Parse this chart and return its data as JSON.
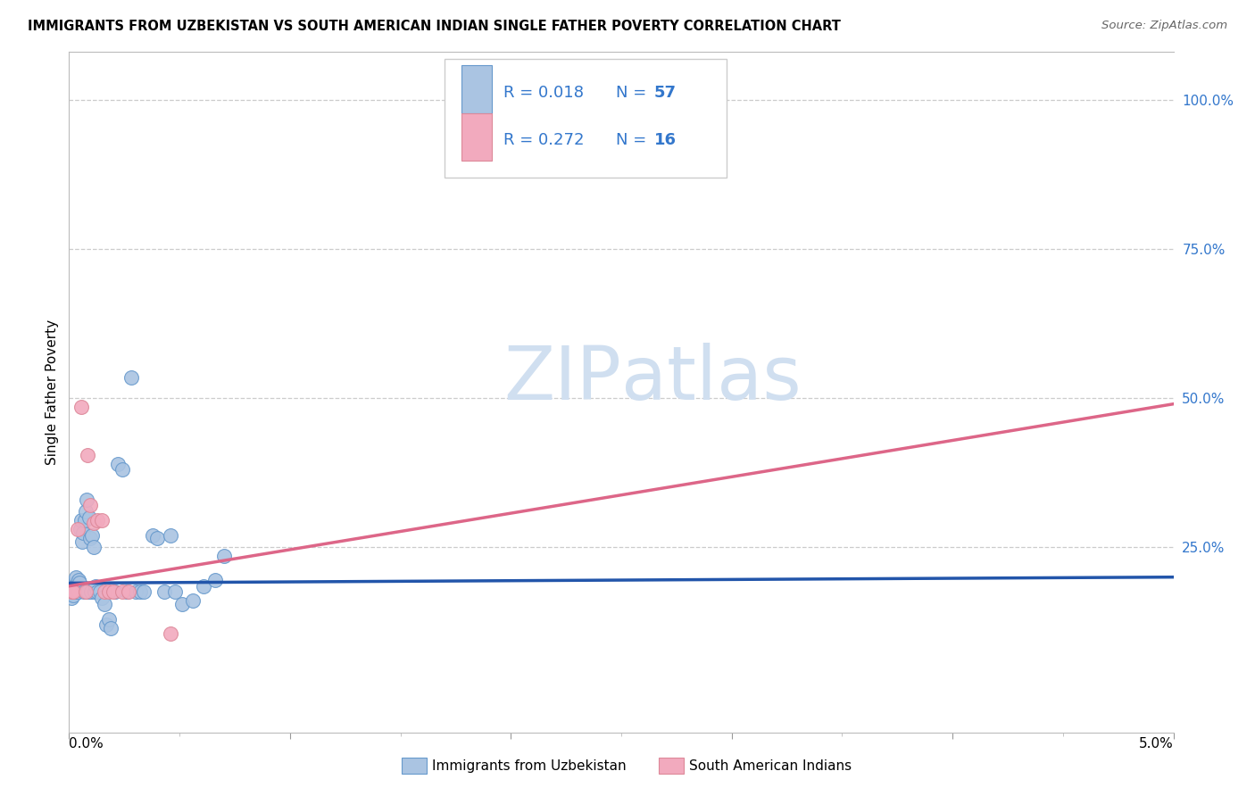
{
  "title": "IMMIGRANTS FROM UZBEKISTAN VS SOUTH AMERICAN INDIAN SINGLE FATHER POVERTY CORRELATION CHART",
  "source": "Source: ZipAtlas.com",
  "ylabel": "Single Father Poverty",
  "right_yticks": [
    "100.0%",
    "75.0%",
    "50.0%",
    "25.0%"
  ],
  "right_ytick_vals": [
    1.0,
    0.75,
    0.5,
    0.25
  ],
  "xmin": 0.0,
  "xmax": 0.05,
  "ymin": -0.06,
  "ymax": 1.08,
  "blue_color": "#aac4e2",
  "pink_color": "#f2aabe",
  "blue_edge_color": "#6699cc",
  "pink_edge_color": "#dd8899",
  "blue_line_color": "#2255aa",
  "pink_line_color": "#dd6688",
  "watermark_color": "#d0dff0",
  "blue_n": 57,
  "pink_n": 16,
  "blue_r": 0.018,
  "pink_r": 0.272,
  "blue_line_y0": 0.19,
  "blue_line_y1": 0.2,
  "pink_line_y0": 0.185,
  "pink_line_y1": 0.49,
  "blue_x": [
    8e-05,
    0.0001,
    0.00012,
    0.00015,
    0.00018,
    0.0002,
    0.00025,
    0.00028,
    0.0003,
    0.00032,
    0.00035,
    0.00038,
    0.0004,
    0.00042,
    0.00045,
    0.00048,
    0.0005,
    0.00055,
    0.0006,
    0.00065,
    0.00068,
    0.0007,
    0.00075,
    0.0008,
    0.00085,
    0.0009,
    0.00095,
    0.001,
    0.00105,
    0.0011,
    0.00115,
    0.0012,
    0.0013,
    0.0014,
    0.0015,
    0.0016,
    0.0017,
    0.0018,
    0.0019,
    0.0021,
    0.0022,
    0.0024,
    0.0026,
    0.0028,
    0.003,
    0.0032,
    0.0034,
    0.0038,
    0.004,
    0.0043,
    0.0046,
    0.0048,
    0.0051,
    0.0056,
    0.0061,
    0.0066,
    0.007
  ],
  "blue_y": [
    0.175,
    0.165,
    0.18,
    0.175,
    0.17,
    0.175,
    0.19,
    0.175,
    0.2,
    0.185,
    0.175,
    0.19,
    0.18,
    0.195,
    0.175,
    0.19,
    0.28,
    0.295,
    0.26,
    0.275,
    0.175,
    0.295,
    0.31,
    0.33,
    0.175,
    0.3,
    0.265,
    0.175,
    0.27,
    0.25,
    0.175,
    0.185,
    0.175,
    0.175,
    0.165,
    0.155,
    0.12,
    0.13,
    0.115,
    0.175,
    0.39,
    0.38,
    0.175,
    0.535,
    0.175,
    0.175,
    0.175,
    0.27,
    0.265,
    0.175,
    0.27,
    0.175,
    0.155,
    0.16,
    0.185,
    0.195,
    0.235
  ],
  "pink_x": [
    0.0001,
    0.0002,
    0.0004,
    0.00055,
    0.00075,
    0.00085,
    0.00095,
    0.0011,
    0.0013,
    0.0015,
    0.0016,
    0.0018,
    0.002,
    0.0024,
    0.0027,
    0.0046
  ],
  "pink_y": [
    0.175,
    0.175,
    0.28,
    0.485,
    0.175,
    0.405,
    0.32,
    0.29,
    0.295,
    0.295,
    0.175,
    0.175,
    0.175,
    0.175,
    0.175,
    0.105
  ]
}
